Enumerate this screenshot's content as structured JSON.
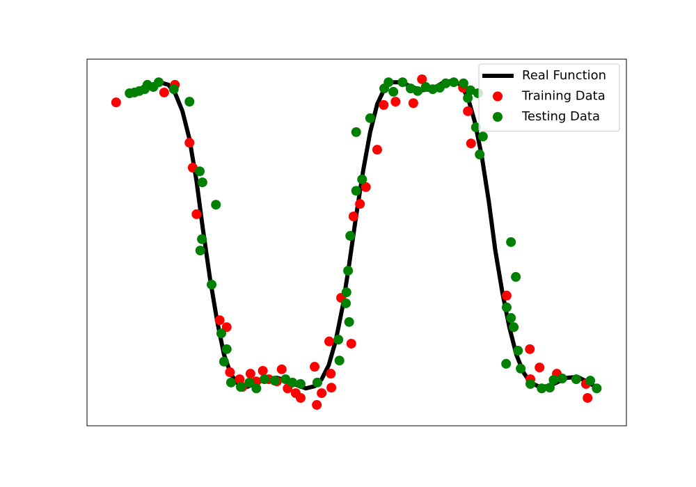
{
  "chart_data": {
    "type": "line",
    "xlim": [
      0,
      100
    ],
    "ylim": [
      0,
      100
    ],
    "legend": "upper right",
    "series": [
      {
        "name": "Real Function",
        "type": "line",
        "color": "#000000",
        "x": [
          8.0,
          9.7,
          11.6,
          13.5,
          15.1,
          16.4,
          17.7,
          19.0,
          20.3,
          21.5,
          22.8,
          24.1,
          25.4,
          26.7,
          28.0,
          29.7,
          31.4,
          33.2,
          35.2,
          37.0,
          38.7,
          40.6,
          42.2,
          43.5,
          44.8,
          46.1,
          47.4,
          48.6,
          49.9,
          51.2,
          52.5,
          53.8,
          55.1,
          56.4,
          58.1,
          60.0,
          61.9,
          63.9,
          65.8,
          67.7,
          69.3,
          70.6,
          71.9,
          73.2,
          74.5,
          75.7,
          77.0,
          78.3,
          79.6,
          80.9,
          82.2,
          83.9,
          85.5,
          87.1,
          89.0,
          91.0,
          92.6,
          94.8
        ],
        "values": [
          90.9,
          91.5,
          92.8,
          93.7,
          93.0,
          90.5,
          85.8,
          78.2,
          66.8,
          53.5,
          40.2,
          28.8,
          19.4,
          14.0,
          11.4,
          10.6,
          11.8,
          12.7,
          13.1,
          12.3,
          11.2,
          10.2,
          10.8,
          12.7,
          16.5,
          23.1,
          32.6,
          44.0,
          57.3,
          69.6,
          80.1,
          87.7,
          91.8,
          93.7,
          93.7,
          92.6,
          91.5,
          91.8,
          93.4,
          94.1,
          93.0,
          89.6,
          82.9,
          73.4,
          61.1,
          47.8,
          36.4,
          26.9,
          19.4,
          14.6,
          11.8,
          10.6,
          10.8,
          11.8,
          13.1,
          13.3,
          12.1,
          10.2
        ]
      },
      {
        "name": "Training Data",
        "type": "scatter",
        "color": "#ff0000",
        "x": [
          5.4,
          14.3,
          16.3,
          19.0,
          19.6,
          20.3,
          24.6,
          25.9,
          26.5,
          28.3,
          28.8,
          30.3,
          31.4,
          32.6,
          33.7,
          35.2,
          36.1,
          37.2,
          38.7,
          39.6,
          42.2,
          42.6,
          43.5,
          45.2,
          45.3,
          44.9,
          47.1,
          49.0,
          49.4,
          50.6,
          51.7,
          53.8,
          55.0,
          57.2,
          60.5,
          62.1,
          69.7,
          70.6,
          71.2,
          77.8,
          79.1,
          82.1,
          83.9,
          87.1,
          92.5,
          92.8,
          82.2
        ],
        "values": [
          88.2,
          90.9,
          93.0,
          77.2,
          70.4,
          57.7,
          28.8,
          26.9,
          14.6,
          12.7,
          10.6,
          14.2,
          12.1,
          15.0,
          12.7,
          12.1,
          15.4,
          10.2,
          8.9,
          7.6,
          16.1,
          5.7,
          8.9,
          14.2,
          10.4,
          23.0,
          34.9,
          22.4,
          57.1,
          60.5,
          65.1,
          75.3,
          87.5,
          88.4,
          88.0,
          94.5,
          92.2,
          85.8,
          77.0,
          35.5,
          26.9,
          20.9,
          15.9,
          14.2,
          11.4,
          7.6,
          12.7
        ]
      },
      {
        "name": "Testing Data",
        "type": "scatter",
        "color": "#008000",
        "x": [
          7.9,
          8.8,
          9.7,
          10.7,
          11.2,
          12.3,
          13.3,
          16.1,
          19.0,
          20.9,
          21.4,
          23.9,
          21.3,
          21.0,
          23.1,
          24.9,
          25.9,
          25.4,
          26.7,
          28.5,
          30.1,
          31.4,
          32.9,
          34.8,
          36.8,
          38.1,
          39.6,
          42.7,
          46.6,
          46.8,
          48.1,
          48.0,
          48.6,
          48.4,
          48.8,
          49.9,
          51.0,
          49.9,
          52.5,
          55.1,
          55.9,
          56.8,
          58.5,
          60.0,
          61.3,
          62.8,
          64.1,
          65.4,
          66.5,
          68.0,
          69.8,
          71.1,
          72.5,
          70.6,
          72.1,
          72.8,
          73.4,
          78.6,
          79.5,
          77.8,
          78.6,
          79.1,
          79.9,
          77.7,
          80.4,
          82.2,
          84.3,
          85.8,
          86.5,
          88.1,
          90.7,
          93.3,
          94.5
        ],
        "values": [
          90.7,
          90.9,
          91.3,
          91.8,
          93.0,
          92.4,
          93.7,
          91.8,
          88.4,
          69.4,
          66.4,
          60.3,
          50.9,
          47.8,
          38.5,
          25.2,
          20.9,
          17.5,
          11.8,
          10.6,
          11.8,
          10.2,
          12.7,
          12.3,
          12.7,
          11.8,
          11.4,
          11.8,
          23.5,
          17.8,
          36.4,
          33.4,
          28.3,
          42.3,
          51.8,
          64.1,
          67.2,
          80.1,
          83.9,
          92.0,
          93.7,
          91.1,
          93.7,
          92.0,
          91.3,
          92.4,
          91.8,
          92.2,
          93.4,
          93.7,
          93.4,
          91.5,
          90.7,
          89.4,
          81.4,
          74.0,
          78.9,
          50.1,
          40.6,
          32.3,
          29.4,
          26.9,
          20.5,
          16.9,
          15.6,
          11.4,
          10.2,
          10.4,
          12.5,
          12.9,
          12.7,
          12.3,
          10.2
        ]
      }
    ]
  }
}
